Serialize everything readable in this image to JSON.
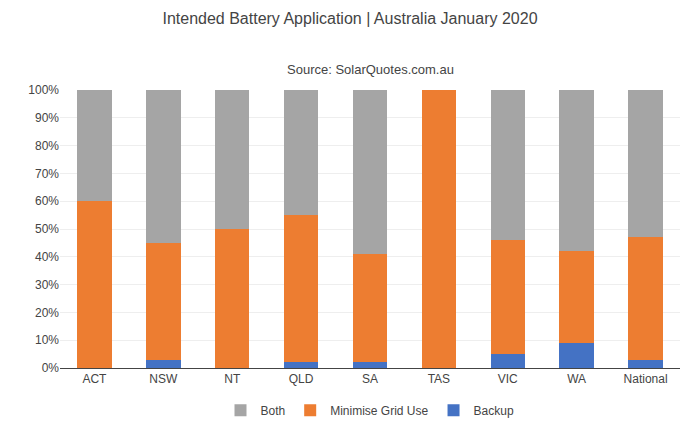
{
  "chart_data": {
    "type": "bar",
    "title": "Intended Battery Application | Australia January 2020",
    "subtitle": "Source: SolarQuotes.com.au",
    "categories": [
      "ACT",
      "NSW",
      "NT",
      "QLD",
      "SA",
      "TAS",
      "VIC",
      "WA",
      "National"
    ],
    "series": [
      {
        "name": "Backup",
        "color": "#4472C4",
        "values": [
          0,
          3,
          0,
          2,
          2,
          0,
          5,
          9,
          3
        ]
      },
      {
        "name": "Minimise Grid Use",
        "color": "#ED7D31",
        "values": [
          60,
          42,
          50,
          53,
          39,
          100,
          41,
          33,
          44
        ]
      },
      {
        "name": "Both",
        "color": "#A5A5A5",
        "values": [
          40,
          55,
          50,
          45,
          59,
          0,
          54,
          58,
          53
        ]
      }
    ],
    "stacked": true,
    "ylim": [
      0,
      100
    ],
    "yticks": [
      {
        "value": 0,
        "label": "0%"
      },
      {
        "value": 10,
        "label": "10%"
      },
      {
        "value": 20,
        "label": "20%"
      },
      {
        "value": 30,
        "label": "30%"
      },
      {
        "value": 40,
        "label": "40%"
      },
      {
        "value": 50,
        "label": "50%"
      },
      {
        "value": 60,
        "label": "60%"
      },
      {
        "value": 70,
        "label": "70%"
      },
      {
        "value": 80,
        "label": "80%"
      },
      {
        "value": 90,
        "label": "90%"
      },
      {
        "value": 100,
        "label": "100%"
      }
    ],
    "grid": true,
    "legend": "bottom"
  }
}
